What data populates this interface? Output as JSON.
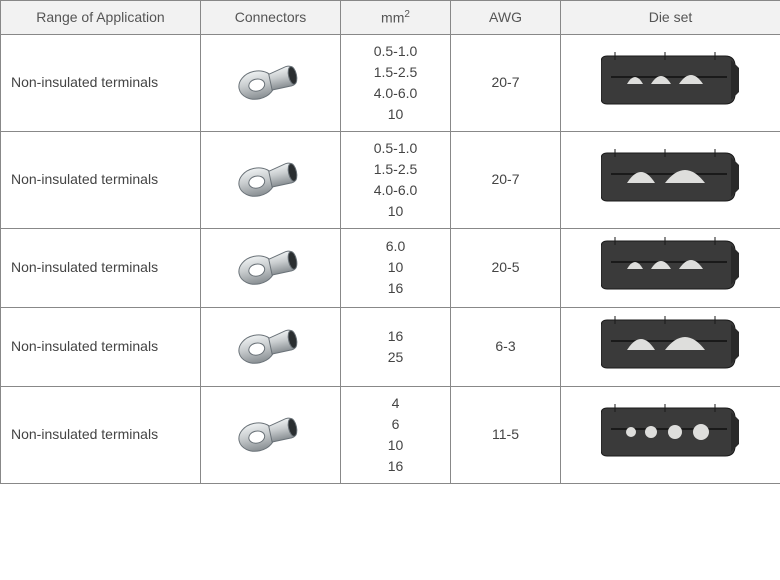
{
  "columns": {
    "app": "Range of Application",
    "conn": "Connectors",
    "mm": "mm",
    "mm_sup": "2",
    "awg": "AWG",
    "die": "Die set"
  },
  "rows": [
    {
      "app": "Non-insulated terminals",
      "mm": [
        "0.5-1.0",
        "1.5-2.5",
        "4.0-6.0",
        "10"
      ],
      "awg": "20-7",
      "die_type": "A"
    },
    {
      "app": "Non-insulated terminals",
      "mm": [
        "0.5-1.0",
        "1.5-2.5",
        "4.0-6.0",
        "10"
      ],
      "awg": "20-7",
      "die_type": "B"
    },
    {
      "app": "Non-insulated terminals",
      "mm": [
        "6.0",
        "10",
        "16"
      ],
      "awg": "20-5",
      "die_type": "A"
    },
    {
      "app": "Non-insulated terminals",
      "mm": [
        "16",
        "25"
      ],
      "awg": "6-3",
      "die_type": "B"
    },
    {
      "app": "Non-insulated terminals",
      "mm": [
        "4",
        "6",
        "10",
        "16"
      ],
      "awg": "11-5",
      "die_type": "C"
    }
  ],
  "style": {
    "header_bg": "#f2f2f2",
    "border_color": "#888888",
    "text_color": "#444444",
    "connector_fill": "#c8ccce",
    "connector_stroke": "#6a7278",
    "die_fill": "#3a3a3a",
    "die_accent": "#dededc",
    "column_widths": {
      "app": 200,
      "conn": 140,
      "mm": 110,
      "awg": 110,
      "die": 220
    },
    "font_size_header": 14,
    "font_size_cell": 14
  }
}
